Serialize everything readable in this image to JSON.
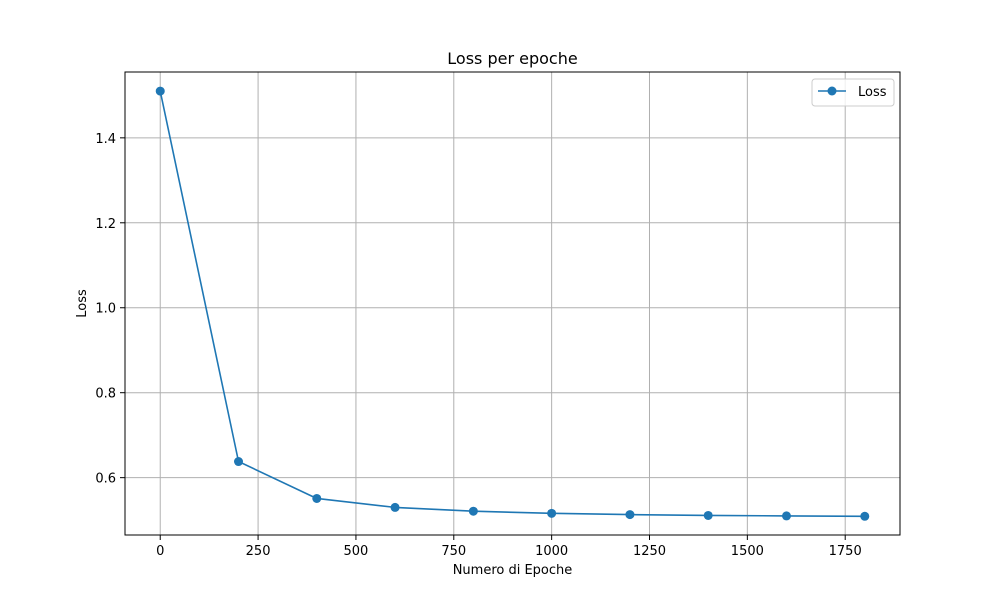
{
  "chart_data": {
    "type": "line",
    "title": "Loss per epoche",
    "xlabel": "Numero di Epoche",
    "ylabel": "Loss",
    "xlim": [
      -90,
      1890
    ],
    "ylim": [
      0.465,
      1.555
    ],
    "xticks": [
      0,
      250,
      500,
      750,
      1000,
      1250,
      1500,
      1750
    ],
    "xtick_labels": [
      "0",
      "250",
      "500",
      "750",
      "1000",
      "1250",
      "1500",
      "1750"
    ],
    "yticks": [
      0.6,
      0.8,
      1.0,
      1.2,
      1.4
    ],
    "ytick_labels": [
      "0.6",
      "0.8",
      "1.0",
      "1.2",
      "1.4"
    ],
    "grid": true,
    "legend_position": "top-right",
    "series": [
      {
        "name": "Loss",
        "color": "#1f77b4",
        "marker": "circle",
        "x": [
          0,
          200,
          400,
          600,
          800,
          1000,
          1200,
          1400,
          1600,
          1800
        ],
        "y": [
          1.51,
          0.638,
          0.551,
          0.53,
          0.521,
          0.516,
          0.513,
          0.511,
          0.51,
          0.509
        ]
      }
    ]
  }
}
